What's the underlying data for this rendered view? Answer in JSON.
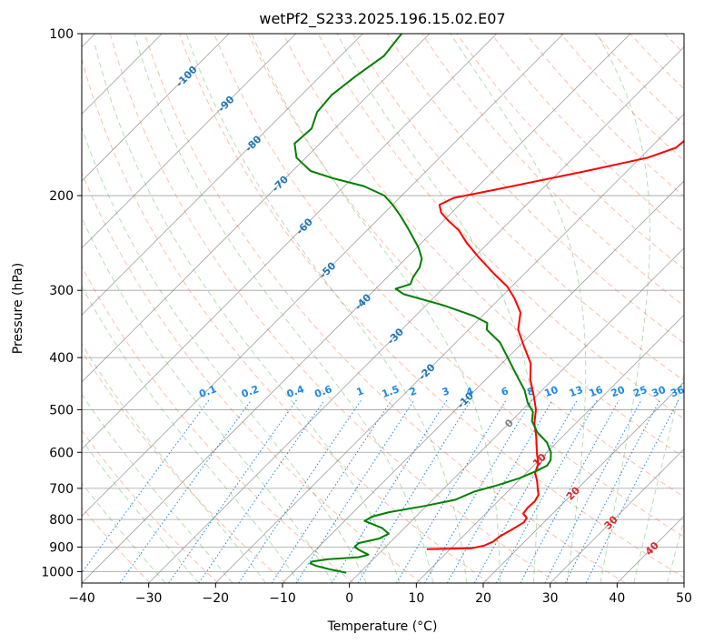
{
  "colors": {
    "temperature": "#ff0000",
    "dewpoint": "#008000",
    "isotherm": "#808080",
    "dry_adiabat": "#ff7f50",
    "moist_adiabat": "#2ca02c",
    "mixing_ratio": "#1e88e5",
    "theta_label": "#1f77b4",
    "theta_label_warm": "#d62728",
    "isotherm_zero_label": "#808080",
    "outer_arc": "#d2b48c"
  },
  "chart_data": {
    "type": "line",
    "kind": "skew-t log-p diagram",
    "title": "wetPf2_S233.2025.196.15.02.E07",
    "xlabel": "Temperature (°C)",
    "ylabel": "Pressure (hPa)",
    "xlim": [
      -40,
      50
    ],
    "ylim": [
      1050,
      100
    ],
    "y_scale": "log",
    "x_ticks": [
      -40,
      -30,
      -20,
      -10,
      0,
      10,
      20,
      30,
      40,
      50
    ],
    "x_tick_labels": [
      "−40",
      "−30",
      "−20",
      "−10",
      "0",
      "10",
      "20",
      "30",
      "40",
      "50"
    ],
    "y_ticks": [
      1000,
      900,
      800,
      700,
      600,
      500,
      400,
      300,
      200,
      100
    ],
    "y_tick_labels": [
      "1000",
      "900",
      "800",
      "700",
      "600",
      "500",
      "400",
      "300",
      "200",
      "100"
    ],
    "grid": true,
    "series": [
      {
        "key": "temperature",
        "points": [
          [
            908,
            6.5
          ],
          [
            905,
            13.0
          ],
          [
            895,
            14.5
          ],
          [
            880,
            15.3
          ],
          [
            860,
            15.5
          ],
          [
            835,
            16.3
          ],
          [
            810,
            17.0
          ],
          [
            795,
            16.8
          ],
          [
            780,
            15.6
          ],
          [
            760,
            15.4
          ],
          [
            740,
            15.5
          ],
          [
            720,
            15.1
          ],
          [
            700,
            14.0
          ],
          [
            680,
            12.9
          ],
          [
            655,
            11.3
          ],
          [
            630,
            10.4
          ],
          [
            600,
            8.5
          ],
          [
            560,
            6.0
          ],
          [
            530,
            3.8
          ],
          [
            500,
            2.0
          ],
          [
            470,
            -0.5
          ],
          [
            440,
            -3.3
          ],
          [
            410,
            -5.7
          ],
          [
            380,
            -9.4
          ],
          [
            355,
            -12.6
          ],
          [
            330,
            -14.8
          ],
          [
            310,
            -17.9
          ],
          [
            295,
            -20.7
          ],
          [
            280,
            -24.4
          ],
          [
            260,
            -29.4
          ],
          [
            245,
            -33.2
          ],
          [
            232,
            -36.3
          ],
          [
            222,
            -39.5
          ],
          [
            215,
            -41.6
          ],
          [
            208,
            -43.0
          ],
          [
            202,
            -41.9
          ],
          [
            195,
            -36.9
          ],
          [
            188,
            -32.0
          ],
          [
            180,
            -26.1
          ],
          [
            170,
            -18.9
          ],
          [
            163,
            -16.2
          ],
          [
            155,
            -15.8
          ],
          [
            147,
            -15.0
          ],
          [
            140,
            -15.2
          ],
          [
            132,
            -17.4
          ],
          [
            125,
            -17.9
          ],
          [
            118,
            -18.6
          ],
          [
            111,
            -19.6
          ],
          [
            105,
            -19.2
          ],
          [
            100,
            -19.1
          ]
        ]
      },
      {
        "key": "dewpoint",
        "points": [
          [
            1005,
            -2.0
          ],
          [
            990,
            -5.0
          ],
          [
            975,
            -7.6
          ],
          [
            965,
            -8.8
          ],
          [
            958,
            -8.8
          ],
          [
            948,
            -6.7
          ],
          [
            940,
            -2.5
          ],
          [
            930,
            -1.4
          ],
          [
            915,
            -3.1
          ],
          [
            900,
            -4.6
          ],
          [
            885,
            -4.6
          ],
          [
            868,
            -2.2
          ],
          [
            850,
            -1.5
          ],
          [
            830,
            -3.3
          ],
          [
            805,
            -7.0
          ],
          [
            790,
            -6.5
          ],
          [
            775,
            -4.6
          ],
          [
            755,
            -0.3
          ],
          [
            735,
            3.4
          ],
          [
            710,
            5.0
          ],
          [
            690,
            7.6
          ],
          [
            670,
            9.8
          ],
          [
            650,
            11.2
          ],
          [
            635,
            12.0
          ],
          [
            620,
            11.7
          ],
          [
            600,
            10.6
          ],
          [
            575,
            8.5
          ],
          [
            550,
            5.5
          ],
          [
            525,
            3.1
          ],
          [
            505,
            1.9
          ],
          [
            485,
            -0.3
          ],
          [
            460,
            -2.6
          ],
          [
            430,
            -6.2
          ],
          [
            400,
            -10.0
          ],
          [
            375,
            -13.4
          ],
          [
            355,
            -17.3
          ],
          [
            345,
            -18.2
          ],
          [
            335,
            -21.2
          ],
          [
            320,
            -27.3
          ],
          [
            305,
            -35.0
          ],
          [
            298,
            -37.0
          ],
          [
            292,
            -35.5
          ],
          [
            284,
            -36.1
          ],
          [
            272,
            -36.6
          ],
          [
            262,
            -37.6
          ],
          [
            250,
            -39.7
          ],
          [
            240,
            -41.9
          ],
          [
            230,
            -44.2
          ],
          [
            218,
            -47.2
          ],
          [
            208,
            -50.0
          ],
          [
            200,
            -52.6
          ],
          [
            192,
            -57.1
          ],
          [
            186,
            -62.6
          ],
          [
            180,
            -67.3
          ],
          [
            170,
            -71.4
          ],
          [
            160,
            -73.8
          ],
          [
            150,
            -73.5
          ],
          [
            140,
            -75.1
          ],
          [
            130,
            -75.5
          ],
          [
            120,
            -74.7
          ],
          [
            110,
            -73.5
          ],
          [
            100,
            -74.2
          ]
        ]
      }
    ],
    "theta_labels": [
      {
        "text": "-100",
        "t": -100,
        "p": 120
      },
      {
        "text": "-90",
        "t": -90,
        "p": 135
      },
      {
        "text": "-80",
        "t": -80,
        "p": 160
      },
      {
        "text": "-70",
        "t": -70,
        "p": 190
      },
      {
        "text": "-60",
        "t": -60,
        "p": 228
      },
      {
        "text": "-50",
        "t": -50,
        "p": 275
      },
      {
        "text": "-40",
        "t": -40,
        "p": 315
      },
      {
        "text": "-30",
        "t": -30,
        "p": 365
      },
      {
        "text": "-20",
        "t": -20,
        "p": 425
      },
      {
        "text": "-10",
        "t": -10,
        "p": 480
      },
      {
        "text": "0",
        "t": 0,
        "p": 530
      },
      {
        "text": "10",
        "t": 10,
        "p": 620
      },
      {
        "text": "20",
        "t": 20,
        "p": 715
      },
      {
        "text": "30",
        "t": 30,
        "p": 810
      },
      {
        "text": "40",
        "t": 40,
        "p": 905
      }
    ],
    "mixing_ratio_labels": [
      "0.1",
      "0.2",
      "0.4",
      "0.6",
      "1",
      "1.5",
      "2",
      "3",
      "4",
      "6",
      "8",
      "10",
      "13",
      "16",
      "20",
      "25",
      "30",
      "36"
    ],
    "mixing_ratio_values": [
      0.1,
      0.2,
      0.4,
      0.6,
      1,
      1.5,
      2,
      3,
      4,
      6,
      8,
      10,
      13,
      16,
      20,
      25,
      30,
      36
    ],
    "mixing_ratio_label_pressure": 480
  }
}
